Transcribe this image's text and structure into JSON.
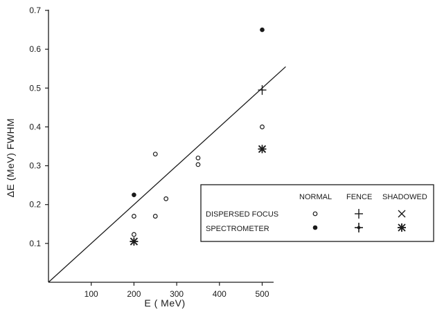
{
  "chart_data": {
    "type": "scatter",
    "title": "",
    "xlabel": "E ( MeV)",
    "ylabel": "ΔE (MeV) FWHM",
    "xlim": [
      0,
      650
    ],
    "ylim": [
      0,
      0.7
    ],
    "x_ticks": [
      100,
      200,
      300,
      400,
      500
    ],
    "x_tick_labels": [
      "100",
      "200",
      "300",
      "400",
      "500"
    ],
    "y_ticks": [
      0.1,
      0.2,
      0.3,
      0.4,
      0.5,
      0.6,
      0.7
    ],
    "y_tick_labels": [
      "0.1",
      "0.2",
      "0.3",
      "0.4",
      "0.5",
      "0.6",
      "0.7"
    ],
    "grid": false,
    "legend_placement": "center-right",
    "legend": {
      "columns": [
        "NORMAL",
        "FENCE",
        "SHADOWED"
      ],
      "rows": [
        "DISPERSED FOCUS",
        "SPECTROMETER"
      ]
    },
    "fit_line": {
      "x": [
        0,
        555
      ],
      "y": [
        0,
        0.555
      ]
    },
    "series": [
      {
        "name": "DISPERSED FOCUS NORMAL",
        "marker": "open-circle",
        "points": [
          {
            "x": 200,
            "y": 0.17
          },
          {
            "x": 200,
            "y": 0.123
          },
          {
            "x": 250,
            "y": 0.33
          },
          {
            "x": 250,
            "y": 0.17
          },
          {
            "x": 275,
            "y": 0.215
          },
          {
            "x": 350,
            "y": 0.32
          },
          {
            "x": 350,
            "y": 0.303
          },
          {
            "x": 500,
            "y": 0.4
          }
        ]
      },
      {
        "name": "SPECTROMETER NORMAL",
        "marker": "filled-circle",
        "points": [
          {
            "x": 200,
            "y": 0.225
          },
          {
            "x": 500,
            "y": 0.65
          }
        ]
      },
      {
        "name": "DISPERSED FOCUS FENCE",
        "marker": "plus",
        "points": [
          {
            "x": 500,
            "y": 0.495
          }
        ]
      },
      {
        "name": "SPECTROMETER FENCE",
        "marker": "bold-plus",
        "points": []
      },
      {
        "name": "DISPERSED FOCUS SHADOWED",
        "marker": "cross",
        "points": []
      },
      {
        "name": "SPECTROMETER SHADOWED",
        "marker": "asterisk",
        "points": [
          {
            "x": 200,
            "y": 0.105
          },
          {
            "x": 500,
            "y": 0.343
          }
        ]
      }
    ]
  }
}
